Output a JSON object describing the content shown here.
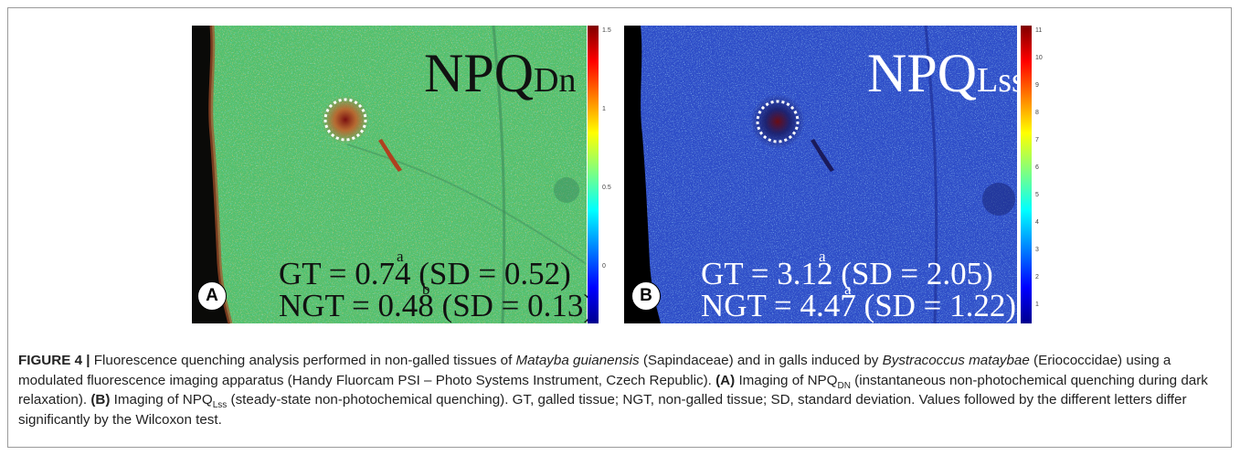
{
  "panels": [
    {
      "letter": "A",
      "title_main": "NPQ",
      "title_sub": "Dn",
      "gt_text": "GT = 0.74 (SD = 0.52)",
      "gt_sup": "a",
      "ngt_text": "NGT = 0.48 (SD = 0.13)",
      "ngt_sup": "b",
      "colorbar_ticks": [
        "1.5",
        "1",
        "0.5",
        "0"
      ],
      "colors": {
        "background": "#4fbf72",
        "speckle": "#c8a53a",
        "margin": "#0a0a08"
      }
    },
    {
      "letter": "B",
      "title_main": "NPQ",
      "title_sub": "Lss",
      "gt_text": "GT = 3.12 (SD = 2.05)",
      "gt_sup": "a",
      "ngt_text": "NGT = 4.47 (SD = 1.22)",
      "ngt_sup": "a",
      "colorbar_ticks": [
        "11",
        "10",
        "9",
        "8",
        "7",
        "6",
        "5",
        "4",
        "3",
        "2",
        "1"
      ],
      "colors": {
        "background": "#2c4bc8",
        "speckle": "#5ca0d8",
        "margin": "#000000"
      }
    }
  ],
  "caption": {
    "label": "FIGURE 4 |",
    "t1": " Fluorescence quenching analysis performed in non-galled tissues of ",
    "species1": "Matayba guianensis",
    "t2": " (Sapindaceae) and in galls induced by ",
    "species2": "Bystracoccus mataybae",
    "t3": " (Eriococcidae) using a modulated fluorescence imaging apparatus (Handy Fluorcam PSI – Photo Systems Instrument, Czech Republic). ",
    "a_label": "(A)",
    "t4": " Imaging of NPQ",
    "sub_dn": "DN",
    "t5": " (instantaneous non-photochemical quenching during dark relaxation). ",
    "b_label": "(B)",
    "t6": " Imaging of NPQ",
    "sub_lss": "Lss",
    "t7": " (steady-state non-photochemical quenching). GT, galled tissue; NGT, non-galled tissue; SD, standard deviation. Values followed by the different letters differ significantly by the Wilcoxon test."
  }
}
